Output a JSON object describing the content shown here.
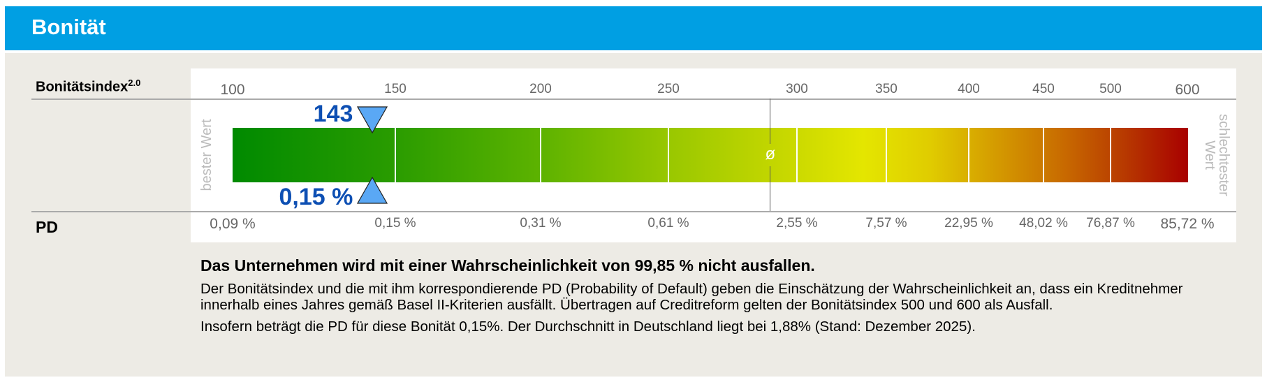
{
  "header": {
    "title": "Bonität"
  },
  "labels": {
    "index_label": "Bonitätsindex",
    "index_sup": "2.0",
    "pd_label": "PD",
    "best": "bester Wert",
    "worst_line1": "schlechtester",
    "worst_line2": "Wert",
    "avg_symbol": "ø"
  },
  "chart_data": {
    "type": "gauge",
    "scale_labels": [
      "100",
      "150",
      "200",
      "250",
      "300",
      "350",
      "400",
      "450",
      "500",
      "600"
    ],
    "pd_labels": [
      "0,09 %",
      "0,15 %",
      "0,31 %",
      "0,61 %",
      "2,55 %",
      "7,57 %",
      "22,95 %",
      "48,02 %",
      "76,87 %",
      "85,72 %"
    ],
    "value": 143,
    "value_label": "143",
    "pd_value_label": "0,15 %",
    "average_pd": 1.88,
    "colors": {
      "best": "#008a00",
      "mid": "#e4e600",
      "worst": "#a80000",
      "marker": "#5aa8f5",
      "value_text": "#0d4fb3"
    }
  },
  "text": {
    "headline": "Das Unternehmen wird mit einer Wahrscheinlichkeit von 99,85 % nicht ausfallen.",
    "paragraph": "Der Bonitätsindex und die mit ihm korrespondierende PD (Probability of Default) geben die Einschätzung der Wahrscheinlichkeit an, dass ein Kreditnehmer innerhalb eines Jahres gemäß Basel II-Kriterien ausfällt. Übertragen auf Creditreform gelten der Bonitätsindex 500 und 600 als Ausfall.",
    "paragraph2": "Insofern beträgt die PD für diese Bonität 0,15%. Der Durchschnitt in Deutschland liegt bei 1,88% (Stand: Dezember 2025)."
  }
}
